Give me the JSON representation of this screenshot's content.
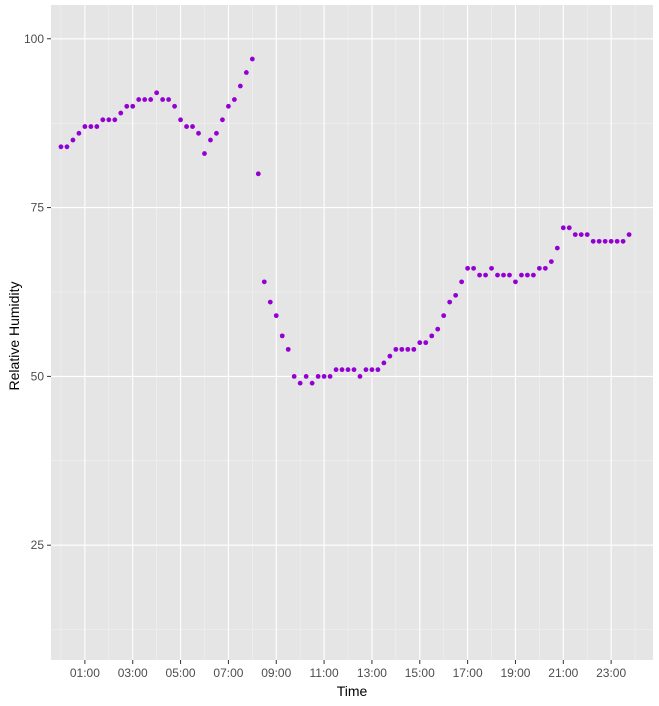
{
  "chart_data": {
    "type": "scatter",
    "xlabel": "Time",
    "ylabel": "Relative Humidity",
    "x_ticks": [
      "01:00",
      "03:00",
      "05:00",
      "07:00",
      "09:00",
      "11:00",
      "13:00",
      "15:00",
      "17:00",
      "19:00",
      "21:00",
      "23:00"
    ],
    "y_ticks": [
      25,
      50,
      75,
      100
    ],
    "xlim": [
      "23:35 (prev. day)",
      "24:45"
    ],
    "ylim": [
      8,
      105
    ],
    "grid": true,
    "point_color": "#9400D3",
    "panel_color": "#E5E5E5",
    "series": [
      {
        "x": [
          "00:00",
          "00:15",
          "00:30",
          "00:45",
          "01:00",
          "01:15",
          "01:30",
          "01:45",
          "02:00",
          "02:15",
          "02:30",
          "02:45",
          "03:00",
          "03:15",
          "03:30",
          "03:45",
          "04:00",
          "04:15",
          "04:30",
          "04:45",
          "05:00",
          "05:15",
          "05:30",
          "05:45",
          "06:00",
          "06:15",
          "06:30",
          "06:45",
          "07:00",
          "07:15",
          "07:30",
          "07:45",
          "08:00",
          "08:15",
          "08:30",
          "08:45",
          "09:00",
          "09:15",
          "09:30",
          "09:45",
          "10:00",
          "10:15",
          "10:30",
          "10:45",
          "11:00",
          "11:15",
          "11:30",
          "11:45",
          "12:00",
          "12:15",
          "12:30",
          "12:45",
          "13:00",
          "13:15",
          "13:30",
          "13:45",
          "14:00",
          "14:15",
          "14:30",
          "14:45",
          "15:00",
          "15:15",
          "15:30",
          "15:45",
          "16:00",
          "16:15",
          "16:30",
          "16:45",
          "17:00",
          "17:15",
          "17:30",
          "17:45",
          "18:00",
          "18:15",
          "18:30",
          "18:45",
          "19:00",
          "19:15",
          "19:30",
          "19:45",
          "20:00",
          "20:15",
          "20:30",
          "20:45",
          "21:00",
          "21:15",
          "21:30",
          "21:45",
          "22:00",
          "22:15",
          "22:30",
          "22:45",
          "23:00",
          "23:15",
          "23:30",
          "23:45"
        ],
        "y": [
          84,
          84,
          85,
          86,
          87,
          87,
          87,
          88,
          88,
          88,
          89,
          90,
          90,
          91,
          91,
          91,
          92,
          91,
          91,
          90,
          88,
          87,
          87,
          86,
          83,
          85,
          86,
          88,
          90,
          91,
          93,
          95,
          97,
          80,
          64,
          61,
          59,
          56,
          54,
          50,
          49,
          50,
          49,
          50,
          50,
          50,
          51,
          51,
          51,
          51,
          50,
          51,
          51,
          51,
          52,
          53,
          54,
          54,
          54,
          54,
          55,
          55,
          56,
          57,
          59,
          61,
          62,
          64,
          66,
          66,
          65,
          65,
          66,
          65,
          65,
          65,
          64,
          65,
          65,
          65,
          66,
          66,
          67,
          69,
          72,
          72,
          71,
          71,
          71,
          70,
          70,
          70,
          70,
          70,
          70,
          71
        ]
      }
    ]
  }
}
